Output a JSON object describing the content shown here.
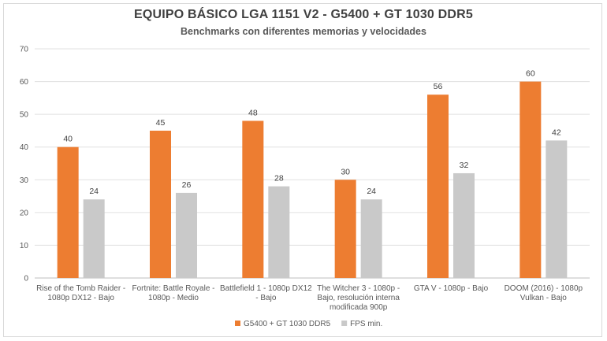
{
  "chart_data": {
    "type": "bar",
    "title": "EQUIPO BÁSICO LGA 1151 V2 - G5400 + GT 1030 DDR5",
    "subtitle": "Benchmarks con diferentes memorias y velocidades",
    "categories": [
      [
        "Rise of the Tomb Raider -",
        "1080p DX12 - Bajo"
      ],
      [
        "Fortnite: Battle Royale -",
        "1080p - Medio"
      ],
      [
        "Battlefield 1 - 1080p DX12",
        "- Bajo"
      ],
      [
        "The Witcher 3 - 1080p -",
        "Bajo, resolución interna",
        "modificada 900p"
      ],
      [
        "GTA V - 1080p - Bajo"
      ],
      [
        "DOOM (2016) - 1080p",
        "Vulkan - Bajo"
      ]
    ],
    "series": [
      {
        "name": "G5400 + GT 1030 DDR5",
        "color": "#ed7d31",
        "values": [
          40,
          45,
          48,
          30,
          56,
          60
        ]
      },
      {
        "name": "FPS min.",
        "color": "#c9c9c9",
        "values": [
          24,
          26,
          28,
          24,
          32,
          42
        ]
      }
    ],
    "ylim": [
      0,
      70
    ],
    "yticks": [
      0,
      10,
      20,
      30,
      40,
      50,
      60,
      70
    ],
    "grid": true,
    "legend": "bottom"
  }
}
